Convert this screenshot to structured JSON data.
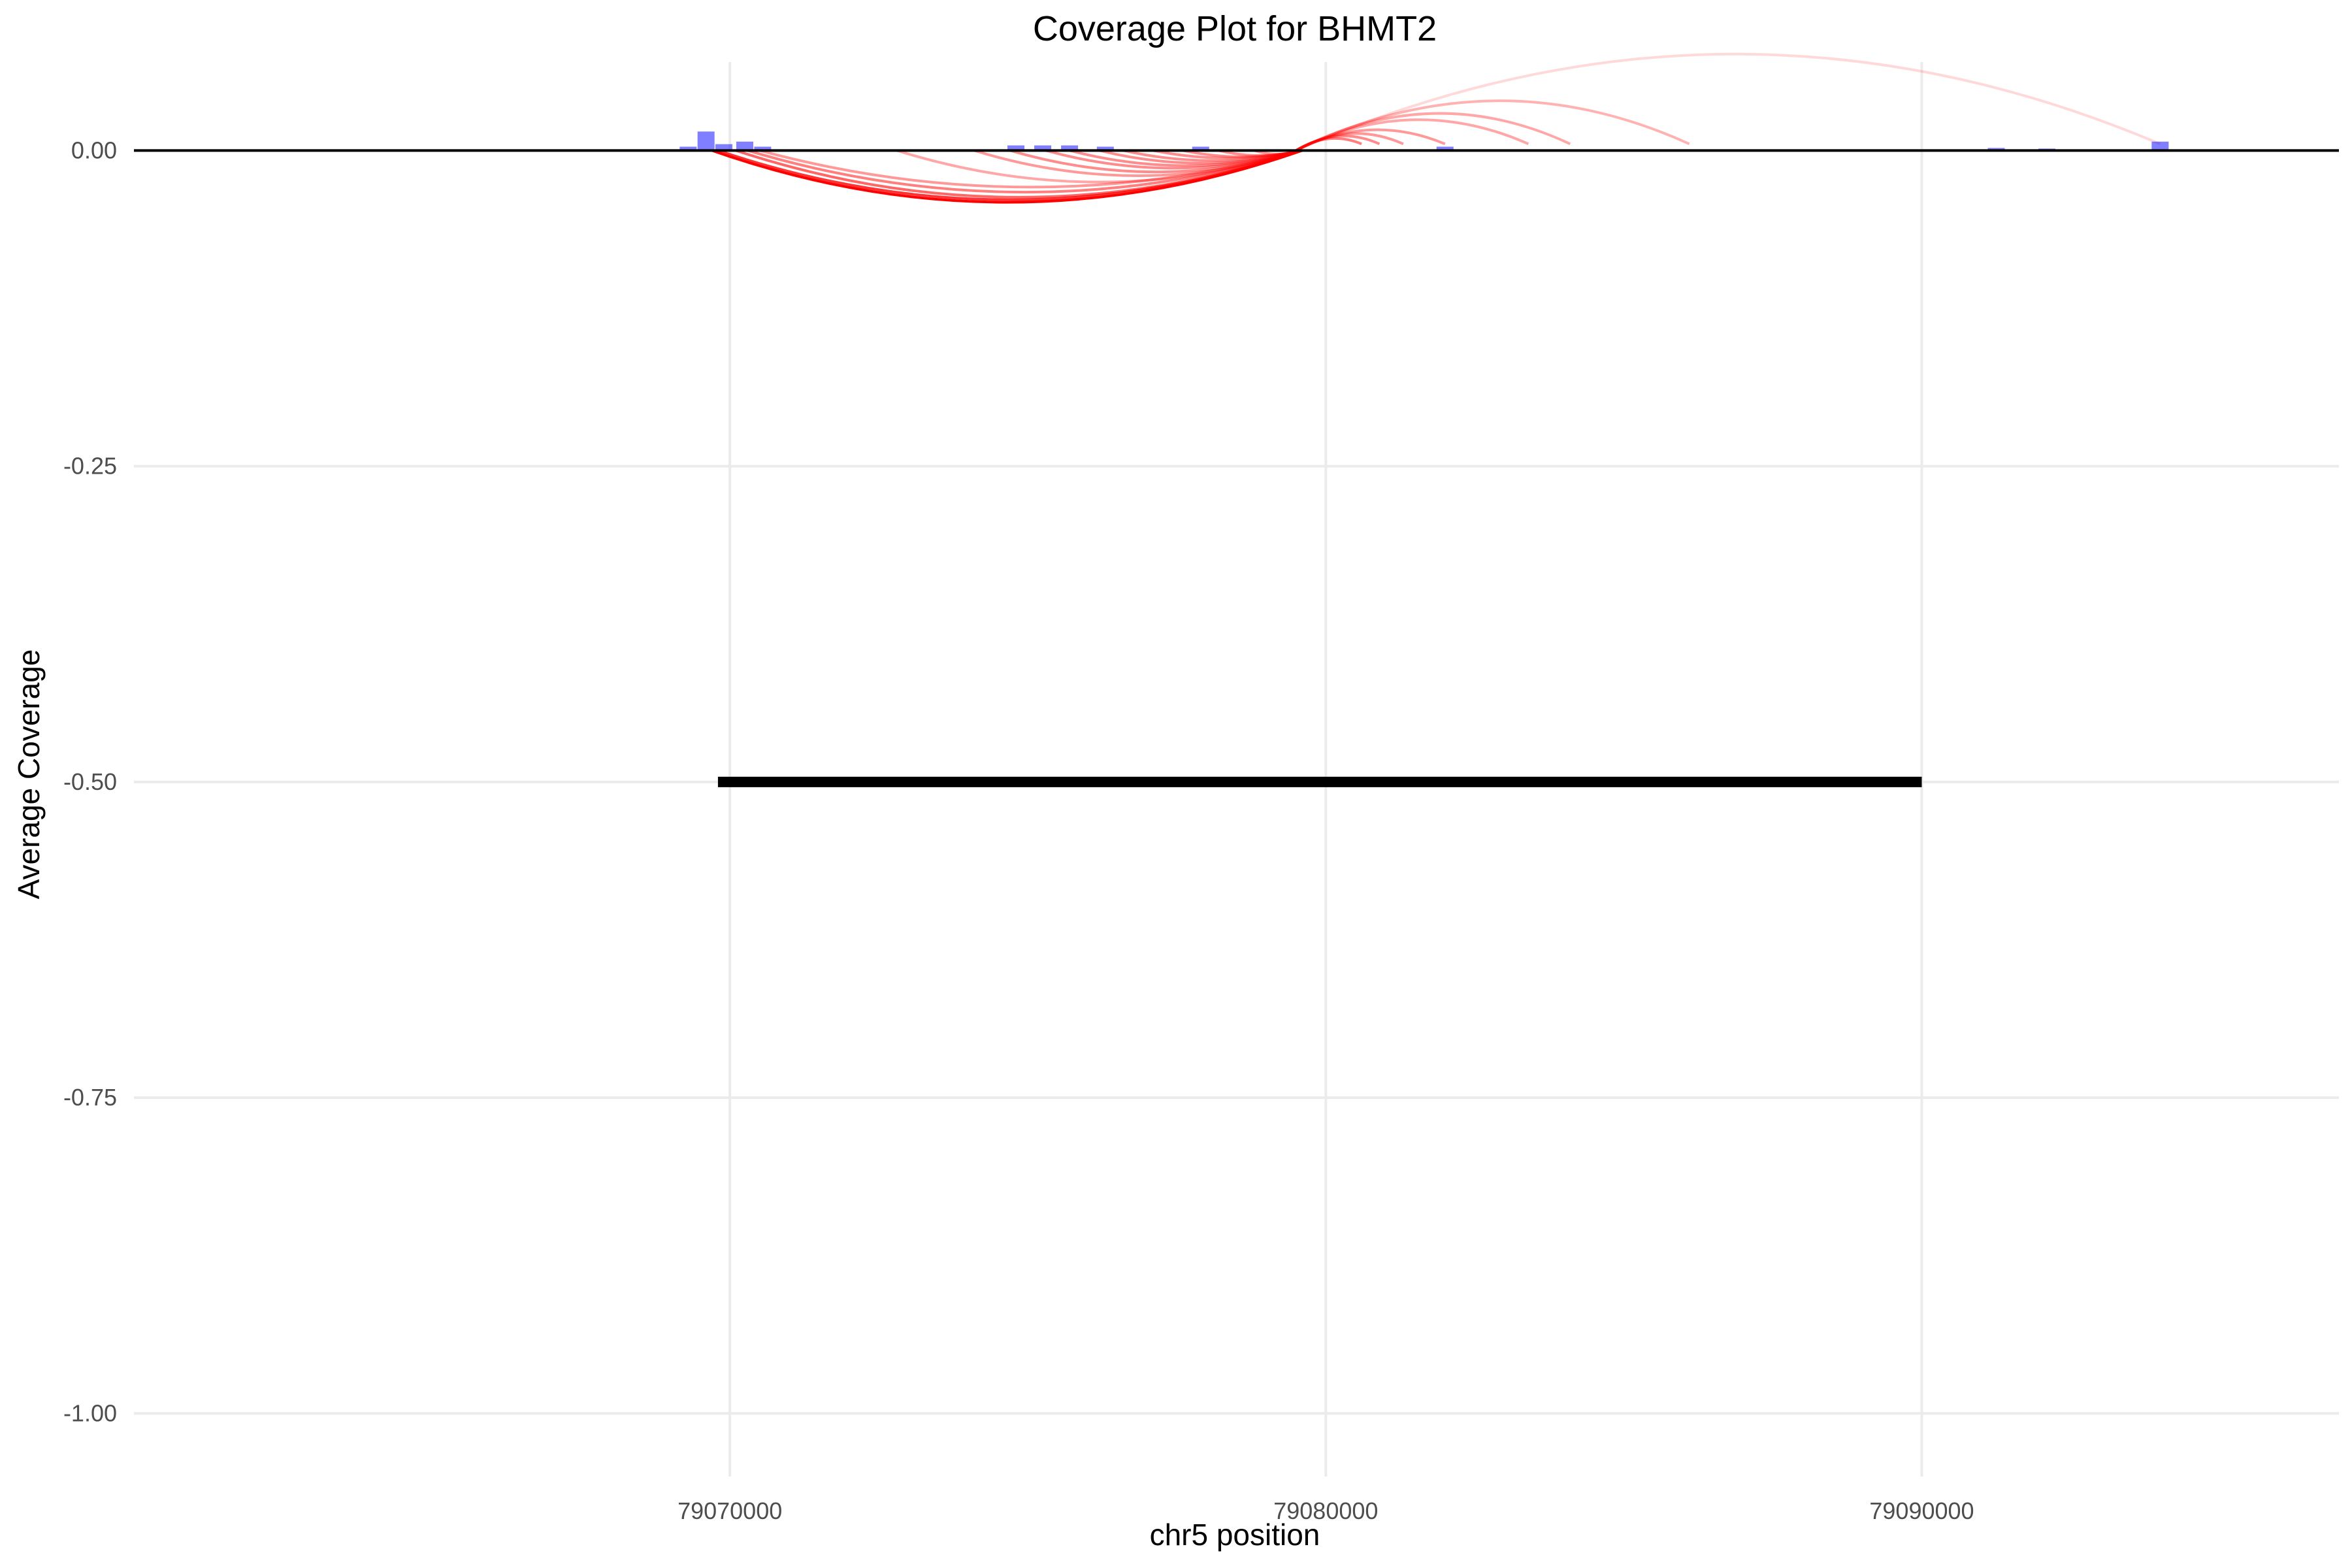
{
  "chart_data": {
    "type": "line",
    "title": "Coverage Plot for BHMT2",
    "xlabel": "chr5 position",
    "ylabel": "Average Coverage",
    "xlim": [
      79060000,
      79097000
    ],
    "ylim": [
      -1.05,
      0.07
    ],
    "x_ticks": [
      79070000,
      79080000,
      79090000
    ],
    "x_tick_labels": [
      "79070000",
      "79080000",
      "79090000"
    ],
    "y_ticks": [
      0,
      -0.25,
      -0.5,
      -0.75,
      -1
    ],
    "y_tick_labels": [
      "0.00",
      "-0.25",
      "-0.50",
      "-0.75",
      "-1.00"
    ],
    "grid": true,
    "legend": "none",
    "colors": {
      "coverage": "#0000ff",
      "junction": "#ff0000",
      "baseline": "#000000",
      "gene": "#000000",
      "grid": "#ebebeb"
    },
    "baseline_y": 0,
    "coverage_bars": [
      {
        "x": 79069300,
        "value": 0.003
      },
      {
        "x": 79069600,
        "value": 0.015
      },
      {
        "x": 79069900,
        "value": 0.005
      },
      {
        "x": 79070250,
        "value": 0.007
      },
      {
        "x": 79070550,
        "value": 0.003
      },
      {
        "x": 79074800,
        "value": 0.004
      },
      {
        "x": 79075250,
        "value": 0.004
      },
      {
        "x": 79075700,
        "value": 0.004
      },
      {
        "x": 79076300,
        "value": 0.003
      },
      {
        "x": 79077900,
        "value": 0.003
      },
      {
        "x": 79082000,
        "value": 0.003
      },
      {
        "x": 79091250,
        "value": 0.002
      },
      {
        "x": 79092100,
        "value": 0.0015
      },
      {
        "x": 79094000,
        "value": 0.007
      }
    ],
    "junctions_below": [
      {
        "start": 79069700,
        "end": 79079600,
        "depth": 0.041,
        "opacity": 1.0
      },
      {
        "start": 79069800,
        "end": 79079600,
        "depth": 0.039,
        "opacity": 0.8
      },
      {
        "start": 79070100,
        "end": 79079600,
        "depth": 0.037,
        "opacity": 0.6
      },
      {
        "start": 79070300,
        "end": 79079600,
        "depth": 0.033,
        "opacity": 0.5
      },
      {
        "start": 79070500,
        "end": 79079600,
        "depth": 0.029,
        "opacity": 0.4
      },
      {
        "start": 79072800,
        "end": 79079600,
        "depth": 0.025,
        "opacity": 0.35
      },
      {
        "start": 79074100,
        "end": 79079600,
        "depth": 0.02,
        "opacity": 0.4
      },
      {
        "start": 79074700,
        "end": 79079600,
        "depth": 0.017,
        "opacity": 0.45
      },
      {
        "start": 79075300,
        "end": 79079600,
        "depth": 0.014,
        "opacity": 0.45
      },
      {
        "start": 79075700,
        "end": 79079600,
        "depth": 0.012,
        "opacity": 0.45
      },
      {
        "start": 79076200,
        "end": 79079600,
        "depth": 0.01,
        "opacity": 0.45
      },
      {
        "start": 79076600,
        "end": 79079600,
        "depth": 0.008,
        "opacity": 0.45
      },
      {
        "start": 79077100,
        "end": 79079600,
        "depth": 0.006,
        "opacity": 0.45
      },
      {
        "start": 79077600,
        "end": 79079600,
        "depth": 0.005,
        "opacity": 0.45
      },
      {
        "start": 79078200,
        "end": 79079600,
        "depth": 0.004,
        "opacity": 0.45
      },
      {
        "start": 79078800,
        "end": 79079600,
        "depth": 0.003,
        "opacity": 0.4
      }
    ],
    "junctions_above": [
      {
        "start": 79079500,
        "end": 79094000,
        "height": 0.075,
        "opacity": 0.15
      },
      {
        "start": 79079500,
        "end": 79086100,
        "height": 0.038,
        "opacity": 0.3
      },
      {
        "start": 79079500,
        "end": 79084100,
        "height": 0.028,
        "opacity": 0.35
      },
      {
        "start": 79079500,
        "end": 79083400,
        "height": 0.023,
        "opacity": 0.35
      },
      {
        "start": 79079500,
        "end": 79082000,
        "height": 0.015,
        "opacity": 0.4
      },
      {
        "start": 79079500,
        "end": 79081300,
        "height": 0.012,
        "opacity": 0.4
      },
      {
        "start": 79079500,
        "end": 79080900,
        "height": 0.01,
        "opacity": 0.45
      },
      {
        "start": 79079500,
        "end": 79080600,
        "height": 0.008,
        "opacity": 0.5
      }
    ],
    "gene_segments": [
      {
        "start": 79069800,
        "end": 79090000,
        "y": -0.5
      }
    ]
  }
}
